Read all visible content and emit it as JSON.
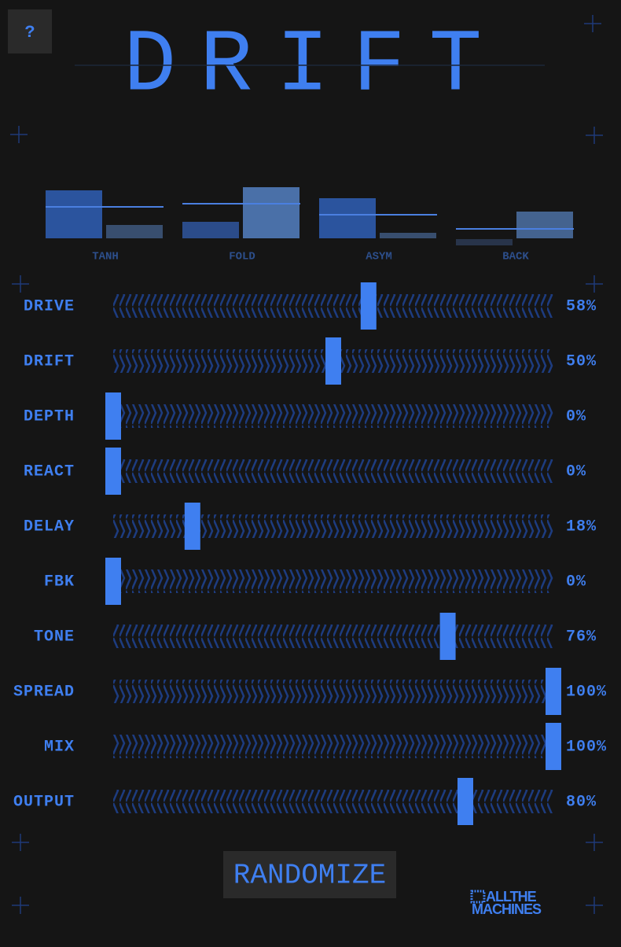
{
  "help_button": "?",
  "title": "DRIFT",
  "shapes": [
    {
      "label": "TANH"
    },
    {
      "label": "FOLD"
    },
    {
      "label": "ASYM"
    },
    {
      "label": "BACK"
    }
  ],
  "sliders": [
    {
      "label": "DRIVE",
      "value": 58,
      "value_label": "58%"
    },
    {
      "label": "DRIFT",
      "value": 50,
      "value_label": "50%"
    },
    {
      "label": "DEPTH",
      "value": 0,
      "value_label": "0%"
    },
    {
      "label": "REACT",
      "value": 0,
      "value_label": "0%"
    },
    {
      "label": "DELAY",
      "value": 18,
      "value_label": "18%"
    },
    {
      "label": "FBK",
      "value": 0,
      "value_label": "0%"
    },
    {
      "label": "TONE",
      "value": 76,
      "value_label": "76%"
    },
    {
      "label": "SPREAD",
      "value": 100,
      "value_label": "100%"
    },
    {
      "label": "MIX",
      "value": 100,
      "value_label": "100%"
    },
    {
      "label": "OUTPUT",
      "value": 80,
      "value_label": "80%"
    }
  ],
  "slider_range": [
    0,
    100
  ],
  "randomize_button": "RANDOMIZE",
  "logo": [
    "ALLTHE",
    "MACHINES"
  ]
}
